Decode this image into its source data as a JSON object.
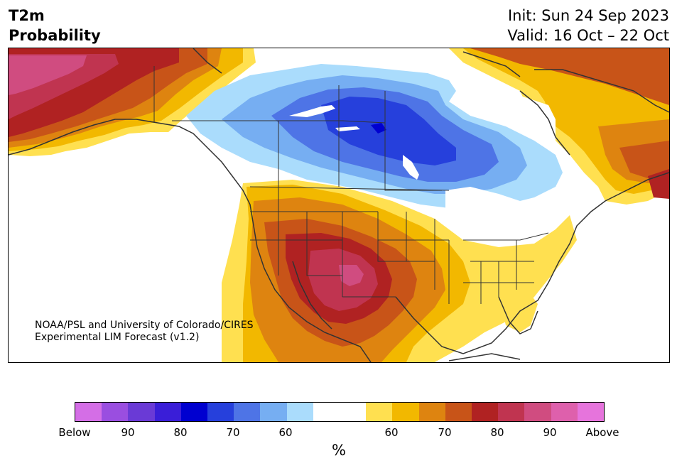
{
  "header": {
    "variable": "T2m",
    "product": "Probability",
    "init": "Init: Sun 24 Sep 2023",
    "valid": "Valid: 16 Oct – 22 Oct"
  },
  "credit": {
    "line1": "NOAA/PSL and University of Colorado/CIRES",
    "line2": "Experimental LIM Forecast (v1.2)"
  },
  "colorbar": {
    "colors": [
      "#d46ee6",
      "#9a4ee0",
      "#6a3ad6",
      "#3a1ed8",
      "#0000d0",
      "#2640dc",
      "#4e74e6",
      "#76aef2",
      "#aadcfc",
      "#ffffff",
      "#ffffff",
      "#ffe050",
      "#f2b800",
      "#de8410",
      "#c85418",
      "#b02222",
      "#c03450",
      "#d04c80",
      "#de60ac",
      "#e674dc"
    ],
    "tick_labels": [
      "Below",
      "90",
      "80",
      "70",
      "60",
      "60",
      "70",
      "80",
      "90",
      "Above"
    ],
    "unit": "%"
  },
  "map": {
    "region": "North America",
    "legend_colors": {
      "above_strong": "#c03450",
      "above_80": "#b02222",
      "above_70": "#c85418",
      "above_65": "#de8410",
      "above_60": "#f2b800",
      "above_55": "#ffe050",
      "below_55": "#aadcfc",
      "below_60": "#76aef2",
      "below_65": "#4e74e6",
      "below_70": "#2640dc",
      "below_80": "#0000d0"
    }
  }
}
